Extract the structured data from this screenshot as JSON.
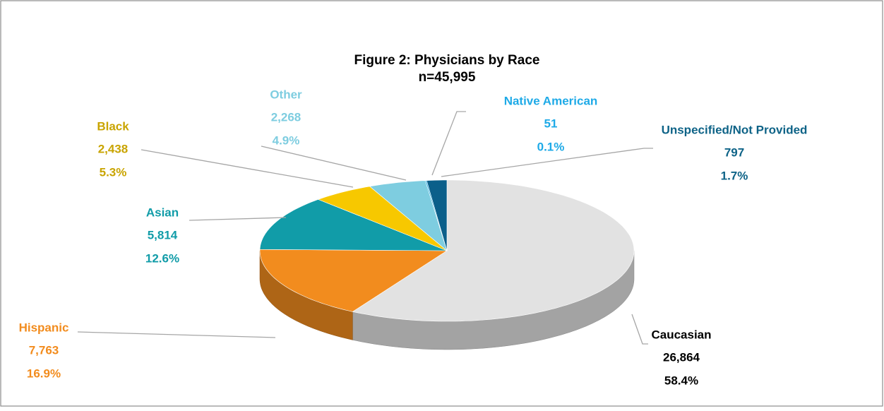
{
  "chart_data": {
    "type": "pie",
    "title": "Figure 2: Physicians by Race",
    "subtitle": "n=45,995",
    "categories": [
      "Caucasian",
      "Hispanic",
      "Asian",
      "Black",
      "Other",
      "Native American",
      "Unspecified/Not Provided"
    ],
    "values": [
      26864,
      7763,
      5814,
      2438,
      2268,
      51,
      797
    ],
    "value_labels": [
      "26,864",
      "7,763",
      "5,814",
      "2,438",
      "2,268",
      "51",
      "797"
    ],
    "percentages": [
      58.4,
      16.9,
      12.6,
      5.3,
      4.9,
      0.1,
      1.7
    ],
    "percentage_labels": [
      "58.4%",
      "16.9%",
      "12.6%",
      "5.3%",
      "4.9%",
      "0.1%",
      "1.7%"
    ],
    "colors": [
      "#e2e2e2",
      "#f28c1e",
      "#119ca8",
      "#f7c800",
      "#7ecde0",
      "#29abe2",
      "#0b5f8a"
    ],
    "label_colors": [
      "#000000",
      "#f28c1e",
      "#119ca8",
      "#c9a400",
      "#7ecde0",
      "#1eaae7",
      "#0e6387"
    ]
  }
}
